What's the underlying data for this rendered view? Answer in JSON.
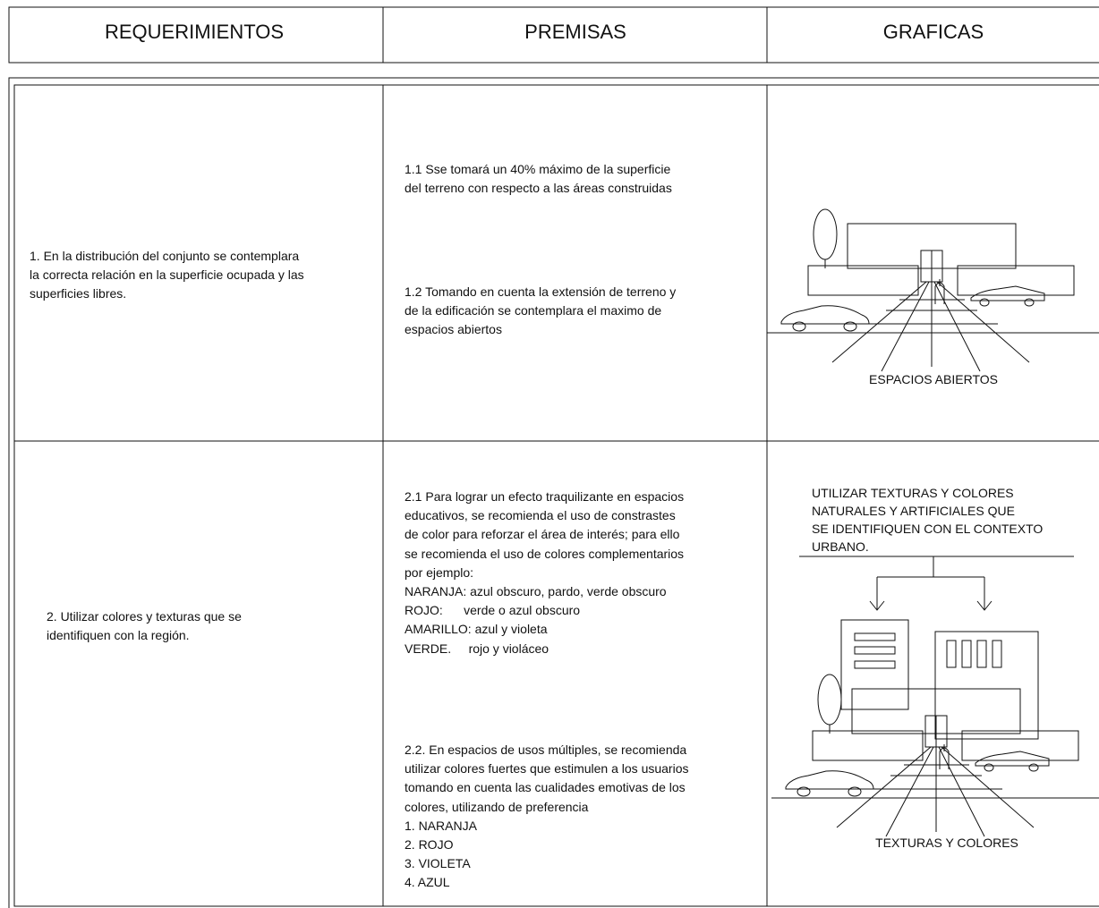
{
  "header": {
    "columns": [
      "REQUERIMIENTOS",
      "PREMISAS",
      "GRAFICAS"
    ]
  },
  "rows": [
    {
      "requirement": [
        "1. En la distribución del conjunto se contemplara",
        "la correcta relación en la superficie ocupada y las",
        "superficies libres."
      ],
      "premises": [
        [
          "1.1 Sse tomará un 40% máximo de la superficie",
          "del terreno con respecto a las áreas construidas"
        ],
        [
          "1.2 Tomando en cuenta la extensión de terreno y",
          "de la edificación se contemplara el maximo de",
          "espacios abiertos"
        ]
      ],
      "graphic": {
        "note": [],
        "caption": "ESPACIOS ABIERTOS"
      }
    },
    {
      "requirement": [
        "2. Utilizar colores y texturas que se",
        "identifiquen con la región."
      ],
      "premises": [
        [
          "2.1 Para lograr un efecto traquilizante en espacios",
          "educativos, se recomienda el uso de constrastes",
          "de color para reforzar el área de interés; para ello",
          "se recomienda el uso de colores complementarios",
          "por ejemplo:",
          "NARANJA: azul obscuro, pardo, verde obscuro",
          "ROJO:      verde o azul obscuro",
          "AMARILLO: azul y violeta",
          "VERDE.     rojo y violáceo"
        ],
        [
          "2.2. En espacios de usos múltiples, se recomienda",
          "utilizar colores fuertes que estimulen a los usuarios",
          "tomando en cuenta las cualidades emotivas de los",
          "colores, utilizando de preferencia",
          "1. NARANJA",
          "2. ROJO",
          "3. VIOLETA",
          "4. AZUL"
        ]
      ],
      "graphic": {
        "note": [
          "UTILIZAR TEXTURAS Y COLORES",
          "NATURALES Y ARTIFICIALES QUE",
          "SE IDENTIFIQUEN CON EL CONTEXTO",
          "URBANO."
        ],
        "caption": "TEXTURAS Y COLORES"
      }
    }
  ]
}
